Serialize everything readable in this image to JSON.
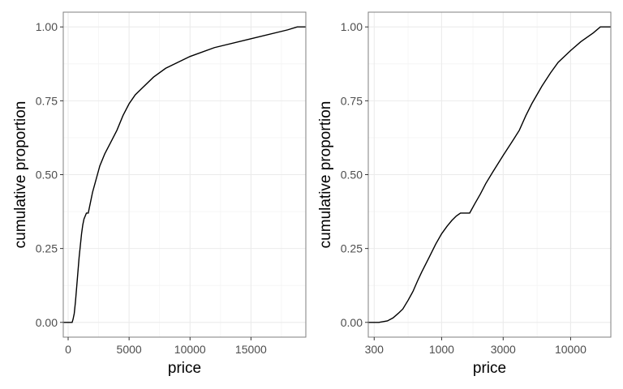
{
  "chart_data": [
    {
      "type": "line",
      "xlabel": "price",
      "ylabel": "cumulative proportion",
      "x_scale": "linear",
      "xlim": [
        -400,
        19500
      ],
      "ylim": [
        -0.05,
        1.05
      ],
      "x_ticks": [
        0,
        5000,
        10000,
        15000
      ],
      "x_tick_labels": [
        "0",
        "5000",
        "10000",
        "15000"
      ],
      "x_minor_ticks": [
        2500,
        7500,
        12500,
        17500
      ],
      "y_ticks": [
        0,
        0.25,
        0.5,
        0.75,
        1
      ],
      "y_tick_labels": [
        "0.00",
        "0.25",
        "0.50",
        "0.75",
        "1.00"
      ],
      "grid": true,
      "series": [
        {
          "x": [
            -400,
            326,
            400,
            500,
            600,
            700,
            800,
            900,
            1000,
            1100,
            1200,
            1300,
            1500,
            1650,
            1800,
            2000,
            2200,
            2400,
            2600,
            3000,
            3500,
            4000,
            4500,
            5000,
            5500,
            6000,
            7000,
            8000,
            10000,
            12000,
            15000,
            18000,
            18800,
            19500
          ],
          "y": [
            0,
            0,
            0.01,
            0.03,
            0.07,
            0.12,
            0.17,
            0.22,
            0.26,
            0.3,
            0.33,
            0.35,
            0.37,
            0.37,
            0.4,
            0.44,
            0.47,
            0.5,
            0.53,
            0.57,
            0.61,
            0.65,
            0.7,
            0.74,
            0.77,
            0.79,
            0.83,
            0.86,
            0.9,
            0.93,
            0.96,
            0.99,
            1.0,
            1.0
          ]
        }
      ]
    },
    {
      "type": "line",
      "xlabel": "price",
      "ylabel": "cumulative proportion",
      "x_scale": "log10",
      "xlim": [
        270,
        20500
      ],
      "ylim": [
        -0.05,
        1.05
      ],
      "x_ticks": [
        300,
        1000,
        3000,
        10000
      ],
      "x_tick_labels": [
        "300",
        "1000",
        "3000",
        "10000"
      ],
      "x_minor_ticks": [
        550,
        1750,
        5500
      ],
      "y_ticks": [
        0,
        0.25,
        0.5,
        0.75,
        1
      ],
      "y_tick_labels": [
        "0.00",
        "0.25",
        "0.50",
        "0.75",
        "1.00"
      ],
      "grid": true,
      "series": [
        {
          "x": [
            270,
            326,
            380,
            420,
            460,
            500,
            550,
            600,
            650,
            700,
            800,
            900,
            1000,
            1100,
            1200,
            1300,
            1400,
            1500,
            1650,
            1800,
            2000,
            2200,
            2500,
            3000,
            3500,
            4000,
            4500,
            5000,
            6000,
            7000,
            8000,
            10000,
            12000,
            15000,
            17000,
            18800,
            20500
          ],
          "y": [
            0,
            0,
            0.005,
            0.015,
            0.03,
            0.045,
            0.075,
            0.105,
            0.14,
            0.17,
            0.22,
            0.265,
            0.3,
            0.325,
            0.345,
            0.36,
            0.37,
            0.37,
            0.37,
            0.4,
            0.435,
            0.47,
            0.51,
            0.565,
            0.61,
            0.65,
            0.7,
            0.74,
            0.8,
            0.845,
            0.88,
            0.92,
            0.95,
            0.98,
            1.0,
            1.0,
            1.0
          ]
        }
      ]
    }
  ]
}
